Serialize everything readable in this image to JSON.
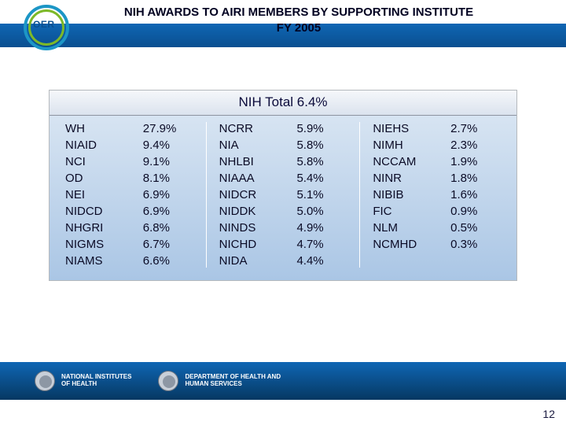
{
  "header": {
    "title_line1": "NIH AWARDS TO AIRI MEMBERS BY SUPPORTING INSTITUTE",
    "title_line2": "FY 2005",
    "logo_label": "OER"
  },
  "table": {
    "header_text": "NIH Total 6.4%",
    "header_bg_light": "#f5f7fa",
    "header_bg_dark": "#dbe3ee",
    "body_bg_light": "#d7e4f2",
    "body_bg_dark": "#aac6e5",
    "text_color": "#0a0a25",
    "font_size_pt": 15,
    "columns": [
      {
        "names": [
          "WH",
          "NIAID",
          "NCI",
          "OD",
          "NEI",
          "NIDCD",
          "NHGRI",
          "NIGMS",
          "NIAMS"
        ],
        "values": [
          "27.9%",
          "9.4%",
          "9.1%",
          "8.1%",
          "6.9%",
          "6.9%",
          "6.8%",
          "6.7%",
          "6.6%"
        ]
      },
      {
        "names": [
          "NCRR",
          "NIA",
          "NHLBI",
          "NIAAA",
          "NIDCR",
          "NIDDK",
          "NINDS",
          "NICHD",
          "NIDA"
        ],
        "values": [
          "5.9%",
          "5.8%",
          "5.8%",
          "5.4%",
          "5.1%",
          "5.0%",
          "4.9%",
          "4.7%",
          "4.4%"
        ]
      },
      {
        "names": [
          "NIEHS",
          "NIMH",
          "NCCAM",
          "NINR",
          "NIBIB",
          "FIC",
          "NLM",
          "NCMHD"
        ],
        "values": [
          "2.7%",
          "2.3%",
          "1.9%",
          "1.8%",
          "1.6%",
          "0.9%",
          "0.5%",
          "0.3%"
        ]
      }
    ]
  },
  "footer": {
    "block1_line1": "NATIONAL INSTITUTES",
    "block1_line2": "OF HEALTH",
    "block2_line1": "DEPARTMENT OF HEALTH AND",
    "block2_line2": "HUMAN SERVICES",
    "band_color_top": "#0f66b4",
    "band_color_bottom": "#063862"
  },
  "page_number": "12",
  "colors": {
    "blue_band_top": "#0f66b4",
    "blue_band_bottom": "#0a4f90",
    "logo_outer": "#1c96c6",
    "logo_inner": "#7db928",
    "logo_text": "#0a4f90"
  }
}
